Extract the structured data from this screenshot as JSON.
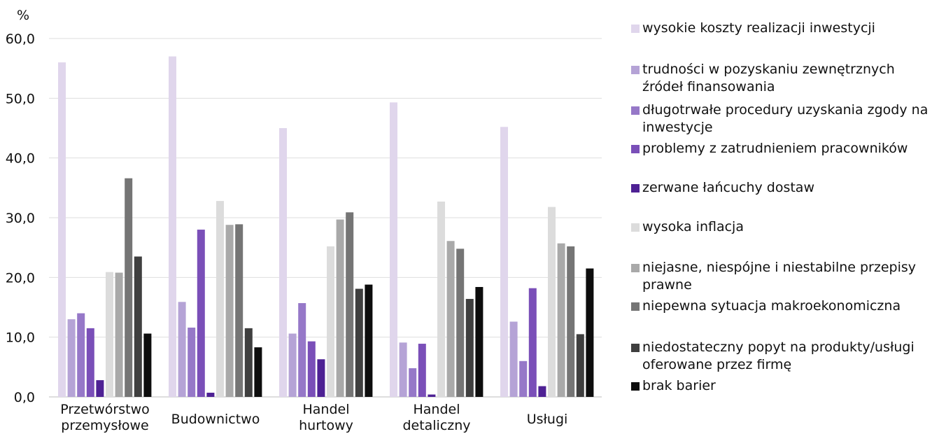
{
  "chart_data": {
    "type": "bar",
    "ylabel": "%",
    "ylim": [
      0,
      60
    ],
    "yticks": [
      "0,0",
      "10,0",
      "20,0",
      "30,0",
      "40,0",
      "50,0",
      "60,0"
    ],
    "categories": [
      "Przetwórstwo przemysłowe",
      "Budownictwo",
      "Handel hurtowy",
      "Handel detaliczny",
      "Usługi"
    ],
    "grid": true,
    "legend_position": "right",
    "series": [
      {
        "name": "wysokie koszty realizacji inwestycji",
        "color": "#e0d6ec",
        "values": [
          56.0,
          57.0,
          45.0,
          49.3,
          45.2
        ]
      },
      {
        "name": "trudności w pozyskaniu zewnętrznych źródeł finansowania",
        "color": "#b5a3d6",
        "values": [
          13.0,
          15.9,
          10.6,
          9.1,
          12.6
        ]
      },
      {
        "name": "długotrwałe procedury uzyskania zgody na inwestycje",
        "color": "#9678c8",
        "values": [
          14.0,
          11.6,
          15.7,
          4.8,
          6.0
        ]
      },
      {
        "name": "problemy z zatrudnieniem pracowników",
        "color": "#7a4fb8",
        "values": [
          11.5,
          28.0,
          9.3,
          8.9,
          18.2
        ]
      },
      {
        "name": "zerwane łańcuchy dostaw",
        "color": "#4e2194",
        "values": [
          2.8,
          0.7,
          6.3,
          0.4,
          1.8
        ]
      },
      {
        "name": "wysoka inflacja",
        "color": "#dcdcdc",
        "values": [
          20.9,
          32.8,
          25.2,
          32.7,
          31.8
        ]
      },
      {
        "name": "niejasne, niespójne i niestabilne przepisy prawne",
        "color": "#a9a9a9",
        "values": [
          20.8,
          28.8,
          29.7,
          26.1,
          25.7
        ]
      },
      {
        "name": "niepewna sytuacja makroekonomiczna",
        "color": "#757575",
        "values": [
          36.6,
          28.9,
          30.9,
          24.8,
          25.2
        ]
      },
      {
        "name": "niedostateczny popyt na produkty/usługi oferowane przez firmę",
        "color": "#3f3f3f",
        "values": [
          23.5,
          11.5,
          18.1,
          16.4,
          10.5
        ]
      },
      {
        "name": "brak barier",
        "color": "#0d0d0d",
        "values": [
          10.6,
          8.3,
          18.8,
          18.4,
          21.5
        ]
      }
    ]
  }
}
